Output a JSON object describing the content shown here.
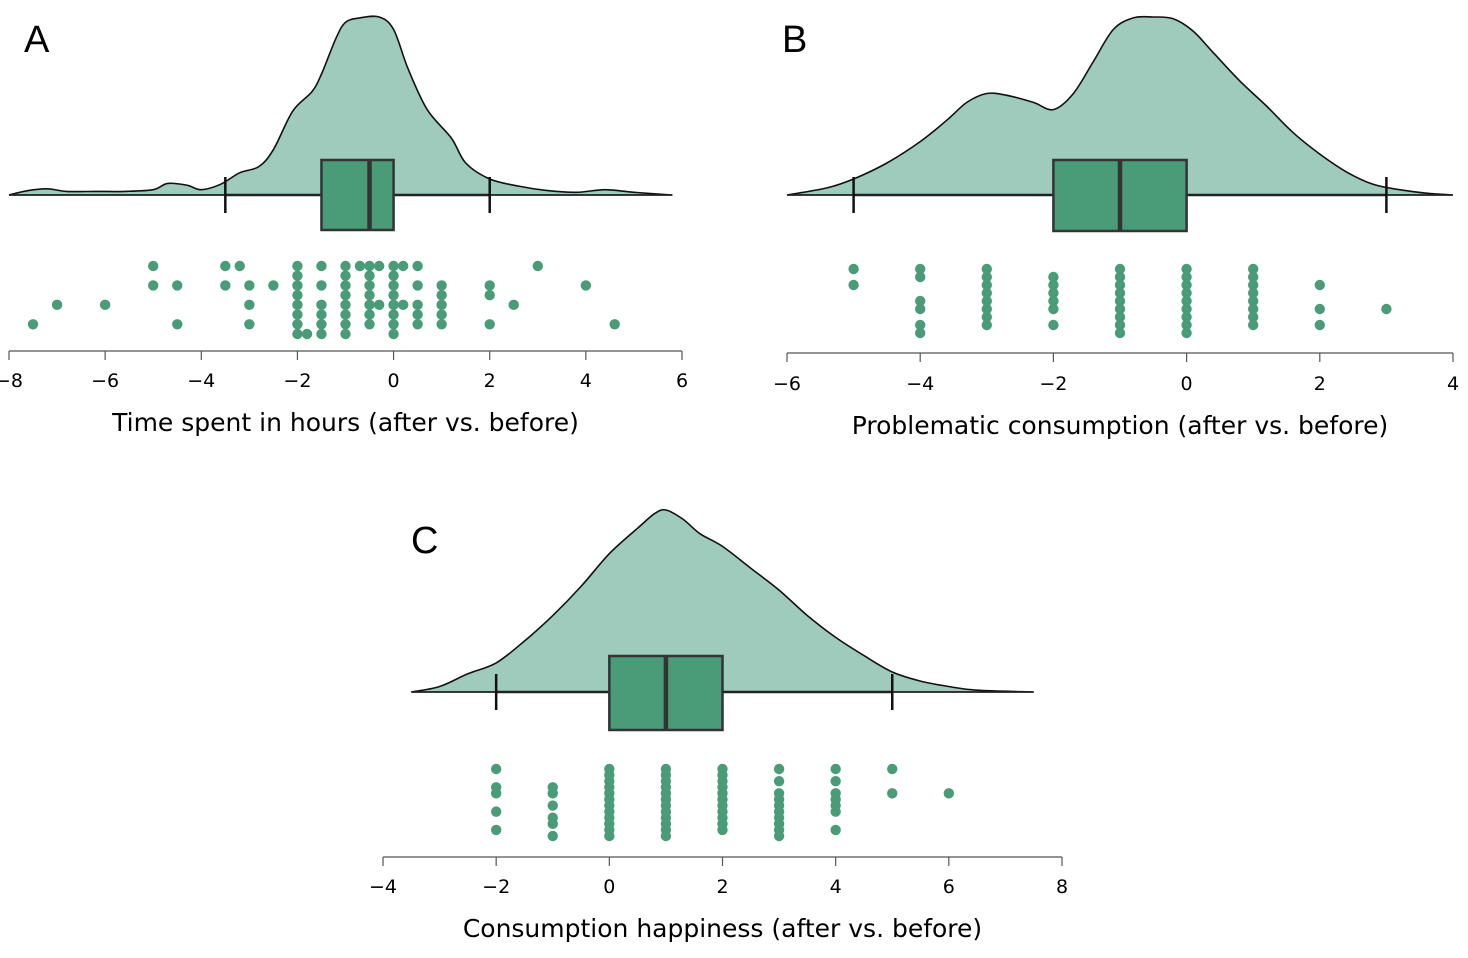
{
  "chart_data": [
    {
      "type": "raincloud",
      "panel": "A",
      "xlabel": "Time spent in hours (after vs. before)",
      "xlim": [
        -8,
        6
      ],
      "ticks": [
        -8,
        -6,
        -4,
        -2,
        0,
        2,
        4,
        6
      ],
      "tick_labels": [
        "−8",
        "−6",
        "−4",
        "−2",
        "0",
        "2",
        "4",
        "6"
      ],
      "box": {
        "whisker_low": -3.5,
        "q1": -1.5,
        "median": -0.5,
        "q3": 0,
        "whisker_high": 2
      },
      "density_range": [
        -8,
        5.8
      ],
      "density": [
        [
          -8,
          0
        ],
        [
          -7.6,
          0.025
        ],
        [
          -7.2,
          0.035
        ],
        [
          -6.8,
          0.02
        ],
        [
          -6.2,
          0.02
        ],
        [
          -5.6,
          0.02
        ],
        [
          -5.0,
          0.03
        ],
        [
          -4.7,
          0.065
        ],
        [
          -4.3,
          0.055
        ],
        [
          -4.0,
          0.03
        ],
        [
          -3.6,
          0.06
        ],
        [
          -3.2,
          0.125
        ],
        [
          -2.8,
          0.16
        ],
        [
          -2.5,
          0.255
        ],
        [
          -2.1,
          0.47
        ],
        [
          -1.7,
          0.58
        ],
        [
          -1.5,
          0.68
        ],
        [
          -1.2,
          0.88
        ],
        [
          -1.0,
          0.97
        ],
        [
          -0.7,
          0.995
        ],
        [
          -0.3,
          1.0
        ],
        [
          0.0,
          0.93
        ],
        [
          0.3,
          0.71
        ],
        [
          0.7,
          0.48
        ],
        [
          1.2,
          0.32
        ],
        [
          1.5,
          0.18
        ],
        [
          2.0,
          0.09
        ],
        [
          2.6,
          0.05
        ],
        [
          3.2,
          0.025
        ],
        [
          3.8,
          0.015
        ],
        [
          4.4,
          0.03
        ],
        [
          5.0,
          0.015
        ],
        [
          5.8,
          0
        ]
      ],
      "points": [
        [
          -7.5,
          3
        ],
        [
          -7,
          2
        ],
        [
          -6,
          2
        ],
        [
          -5,
          0
        ],
        [
          -5,
          1
        ],
        [
          -4.5,
          1
        ],
        [
          -4.5,
          3
        ],
        [
          -3.5,
          0
        ],
        [
          -3.5,
          1
        ],
        [
          -3.2,
          0
        ],
        [
          -3,
          1
        ],
        [
          -3,
          2
        ],
        [
          -3,
          3
        ],
        [
          -2.5,
          1
        ],
        [
          -2,
          0
        ],
        [
          -2,
          0.5
        ],
        [
          -2,
          1
        ],
        [
          -2,
          1.5
        ],
        [
          -2,
          2
        ],
        [
          -2,
          2.5
        ],
        [
          -2,
          3
        ],
        [
          -2,
          3.5
        ],
        [
          -1.8,
          3.5
        ],
        [
          -1.5,
          1
        ],
        [
          -1.5,
          2
        ],
        [
          -1.5,
          2.5
        ],
        [
          -1.5,
          3
        ],
        [
          -1.5,
          0
        ],
        [
          -1.5,
          3.5
        ],
        [
          -1,
          0
        ],
        [
          -1,
          0.5
        ],
        [
          -1,
          1
        ],
        [
          -1,
          1.5
        ],
        [
          -1,
          2
        ],
        [
          -1,
          2.5
        ],
        [
          -1,
          3
        ],
        [
          -1,
          3.5
        ],
        [
          -0.7,
          0
        ],
        [
          -0.5,
          0
        ],
        [
          -0.5,
          0.5
        ],
        [
          -0.5,
          1
        ],
        [
          -0.5,
          1.5
        ],
        [
          -0.5,
          2
        ],
        [
          -0.5,
          2.5
        ],
        [
          -0.5,
          3
        ],
        [
          -0.3,
          0
        ],
        [
          -0.3,
          2
        ],
        [
          0,
          0
        ],
        [
          0,
          0.5
        ],
        [
          0,
          1
        ],
        [
          0,
          1.5
        ],
        [
          0,
          2
        ],
        [
          0,
          2.5
        ],
        [
          0,
          3
        ],
        [
          0,
          3.5
        ],
        [
          0.2,
          2
        ],
        [
          0.2,
          0
        ],
        [
          0.5,
          0
        ],
        [
          0.5,
          1
        ],
        [
          0.5,
          2
        ],
        [
          0.5,
          2.5
        ],
        [
          0.5,
          3
        ],
        [
          1,
          1
        ],
        [
          1,
          1.5
        ],
        [
          1,
          2
        ],
        [
          1,
          2.5
        ],
        [
          1,
          3
        ],
        [
          2,
          1
        ],
        [
          2,
          1.5
        ],
        [
          2,
          3
        ],
        [
          2.5,
          2
        ],
        [
          3,
          0
        ],
        [
          4,
          1
        ],
        [
          4.6,
          3
        ]
      ]
    },
    {
      "type": "raincloud",
      "panel": "B",
      "xlabel": "Problematic consumption (after vs. before)",
      "xlim": [
        -6,
        4
      ],
      "ticks": [
        -6,
        -4,
        -2,
        0,
        2,
        4
      ],
      "tick_labels": [
        "−6",
        "−4",
        "−2",
        "0",
        "2",
        "4"
      ],
      "box": {
        "whisker_low": -5,
        "q1": -2,
        "median": -1,
        "q3": 0,
        "whisker_high": 3
      },
      "density_range": [
        -6,
        4
      ],
      "density": [
        [
          -6,
          0
        ],
        [
          -5.4,
          0.04
        ],
        [
          -5.0,
          0.09
        ],
        [
          -4.5,
          0.18
        ],
        [
          -4.0,
          0.3
        ],
        [
          -3.6,
          0.42
        ],
        [
          -3.3,
          0.52
        ],
        [
          -3.0,
          0.57
        ],
        [
          -2.7,
          0.56
        ],
        [
          -2.3,
          0.52
        ],
        [
          -2.0,
          0.48
        ],
        [
          -1.7,
          0.57
        ],
        [
          -1.4,
          0.75
        ],
        [
          -1.1,
          0.93
        ],
        [
          -0.8,
          0.995
        ],
        [
          -0.5,
          1.0
        ],
        [
          -0.2,
          0.99
        ],
        [
          0.1,
          0.92
        ],
        [
          0.4,
          0.8
        ],
        [
          0.8,
          0.64
        ],
        [
          1.2,
          0.5
        ],
        [
          1.6,
          0.35
        ],
        [
          2.0,
          0.23
        ],
        [
          2.4,
          0.13
        ],
        [
          2.8,
          0.06
        ],
        [
          3.2,
          0.03
        ],
        [
          3.6,
          0.01
        ],
        [
          4.0,
          0
        ]
      ],
      "points": [
        [
          -5,
          0
        ],
        [
          -5,
          1
        ],
        [
          -4,
          0
        ],
        [
          -4,
          0.5
        ],
        [
          -4,
          2
        ],
        [
          -4,
          2.5
        ],
        [
          -4,
          3.5
        ],
        [
          -4,
          4
        ],
        [
          -3,
          0
        ],
        [
          -3,
          0.5
        ],
        [
          -3,
          1
        ],
        [
          -3,
          1.5
        ],
        [
          -3,
          2
        ],
        [
          -3,
          2.5
        ],
        [
          -3,
          3
        ],
        [
          -3,
          3.5
        ],
        [
          -2,
          0.5
        ],
        [
          -2,
          1
        ],
        [
          -2,
          1.5
        ],
        [
          -2,
          2
        ],
        [
          -2,
          2.5
        ],
        [
          -2,
          3.5
        ],
        [
          -1,
          0
        ],
        [
          -1,
          0.5
        ],
        [
          -1,
          1
        ],
        [
          -1,
          1.5
        ],
        [
          -1,
          2
        ],
        [
          -1,
          2.5
        ],
        [
          -1,
          3
        ],
        [
          -1,
          3.5
        ],
        [
          -1,
          4
        ],
        [
          0,
          0
        ],
        [
          0,
          0.5
        ],
        [
          0,
          1
        ],
        [
          0,
          1.5
        ],
        [
          0,
          2
        ],
        [
          0,
          2.5
        ],
        [
          0,
          3
        ],
        [
          0,
          3.5
        ],
        [
          0,
          4
        ],
        [
          1,
          0
        ],
        [
          1,
          0.5
        ],
        [
          1,
          1
        ],
        [
          1,
          1.5
        ],
        [
          1,
          2
        ],
        [
          1,
          2.5
        ],
        [
          1,
          3
        ],
        [
          1,
          3.5
        ],
        [
          2,
          1
        ],
        [
          2,
          2.5
        ],
        [
          2,
          3.5
        ],
        [
          3,
          2.5
        ]
      ]
    },
    {
      "type": "raincloud",
      "panel": "C",
      "xlabel": "Consumption happiness (after vs. before)",
      "xlim": [
        -4,
        8
      ],
      "ticks": [
        -4,
        -2,
        0,
        2,
        4,
        6,
        8
      ],
      "tick_labels": [
        "−4",
        "−2",
        "0",
        "2",
        "4",
        "6",
        "8"
      ],
      "box": {
        "whisker_low": -2,
        "q1": 0,
        "median": 1,
        "q3": 2,
        "whisker_high": 5
      },
      "density_range": [
        -3.5,
        7.5
      ],
      "density": [
        [
          -3.5,
          0
        ],
        [
          -3.0,
          0.03
        ],
        [
          -2.5,
          0.1
        ],
        [
          -2.0,
          0.16
        ],
        [
          -1.5,
          0.28
        ],
        [
          -1.0,
          0.42
        ],
        [
          -0.5,
          0.58
        ],
        [
          0.0,
          0.76
        ],
        [
          0.5,
          0.9
        ],
        [
          0.8,
          0.98
        ],
        [
          1.0,
          1.0
        ],
        [
          1.3,
          0.95
        ],
        [
          1.6,
          0.87
        ],
        [
          2.0,
          0.8
        ],
        [
          2.5,
          0.68
        ],
        [
          3.0,
          0.56
        ],
        [
          3.5,
          0.42
        ],
        [
          4.0,
          0.3
        ],
        [
          4.5,
          0.2
        ],
        [
          5.0,
          0.11
        ],
        [
          5.5,
          0.06
        ],
        [
          6.0,
          0.03
        ],
        [
          6.5,
          0.01
        ],
        [
          7.5,
          0
        ]
      ],
      "points": [
        [
          -2,
          0
        ],
        [
          -2,
          1.5
        ],
        [
          -2,
          2
        ],
        [
          -2,
          3.5
        ],
        [
          -2,
          5
        ],
        [
          -1,
          1.5
        ],
        [
          -1,
          2
        ],
        [
          -1,
          3
        ],
        [
          -1,
          4
        ],
        [
          -1,
          4.5
        ],
        [
          -1,
          5.5
        ],
        [
          0,
          0
        ],
        [
          0,
          0.5
        ],
        [
          0,
          1
        ],
        [
          0,
          1.5
        ],
        [
          0,
          2
        ],
        [
          0,
          2.5
        ],
        [
          0,
          3
        ],
        [
          0,
          3.5
        ],
        [
          0,
          4
        ],
        [
          0,
          4.5
        ],
        [
          0,
          5
        ],
        [
          0,
          5.5
        ],
        [
          1,
          0
        ],
        [
          1,
          0.5
        ],
        [
          1,
          1
        ],
        [
          1,
          1.5
        ],
        [
          1,
          2
        ],
        [
          1,
          2.5
        ],
        [
          1,
          3
        ],
        [
          1,
          3.5
        ],
        [
          1,
          4
        ],
        [
          1,
          4.5
        ],
        [
          1,
          5
        ],
        [
          1,
          5.5
        ],
        [
          2,
          0
        ],
        [
          2,
          0.5
        ],
        [
          2,
          1
        ],
        [
          2,
          1.5
        ],
        [
          2,
          2
        ],
        [
          2,
          2.5
        ],
        [
          2,
          3
        ],
        [
          2,
          3.5
        ],
        [
          2,
          4
        ],
        [
          2,
          4.5
        ],
        [
          2,
          5
        ],
        [
          3,
          0
        ],
        [
          3,
          1
        ],
        [
          3,
          2
        ],
        [
          3,
          2.5
        ],
        [
          3,
          3
        ],
        [
          3,
          3.5
        ],
        [
          3,
          4
        ],
        [
          3,
          4.5
        ],
        [
          3,
          5
        ],
        [
          3,
          5.5
        ],
        [
          4,
          0
        ],
        [
          4,
          1
        ],
        [
          4,
          2
        ],
        [
          4,
          2.5
        ],
        [
          4,
          3
        ],
        [
          4,
          3.5
        ],
        [
          4,
          5
        ],
        [
          5,
          0
        ],
        [
          5,
          2
        ],
        [
          6,
          2
        ]
      ]
    }
  ]
}
